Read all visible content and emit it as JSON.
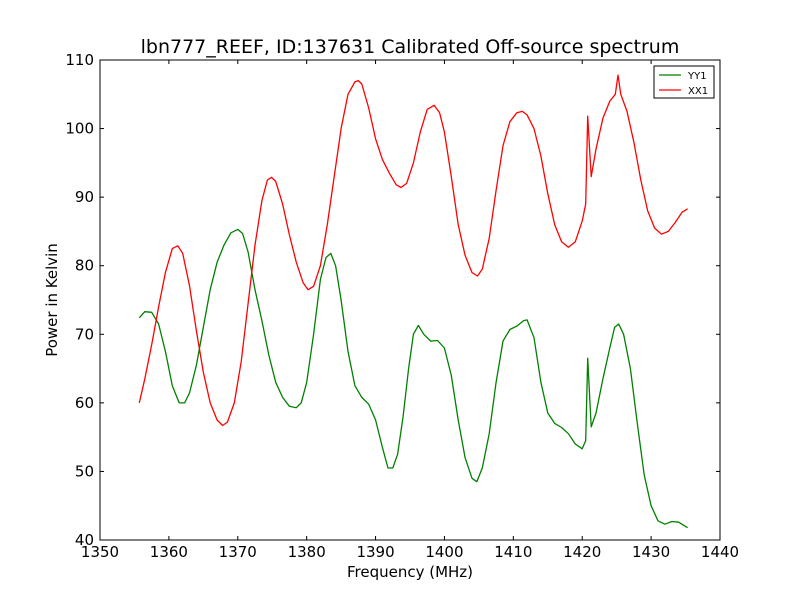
{
  "chart_data": {
    "type": "line",
    "title": "lbn777_REEF, ID:137631 Calibrated Off-source spectrum",
    "xlabel": "Frequency (MHz)",
    "ylabel": "Power in Kelvin",
    "xlim": [
      1350,
      1440
    ],
    "ylim": [
      40,
      110
    ],
    "xticks": [
      1350,
      1360,
      1370,
      1380,
      1390,
      1400,
      1410,
      1420,
      1430,
      1440
    ],
    "yticks": [
      40,
      50,
      60,
      70,
      80,
      90,
      100,
      110
    ],
    "grid": false,
    "legend_position": "top-right",
    "series": [
      {
        "name": "YY1",
        "color": "#008000",
        "points": [
          [
            1355.7,
            72.4
          ],
          [
            1356.5,
            73.3
          ],
          [
            1357.5,
            73.2
          ],
          [
            1358.5,
            71.5
          ],
          [
            1359.5,
            67.5
          ],
          [
            1360.5,
            62.5
          ],
          [
            1361.5,
            60.0
          ],
          [
            1362.3,
            60.0
          ],
          [
            1363.0,
            61.5
          ],
          [
            1364.0,
            65.5
          ],
          [
            1365.0,
            71.0
          ],
          [
            1366.0,
            76.5
          ],
          [
            1367.0,
            80.5
          ],
          [
            1368.0,
            83.0
          ],
          [
            1369.0,
            84.8
          ],
          [
            1370.0,
            85.3
          ],
          [
            1370.7,
            84.7
          ],
          [
            1371.5,
            82.0
          ],
          [
            1372.5,
            76.5
          ],
          [
            1373.5,
            72.0
          ],
          [
            1374.5,
            67.0
          ],
          [
            1375.5,
            63.0
          ],
          [
            1376.5,
            60.8
          ],
          [
            1377.5,
            59.5
          ],
          [
            1378.5,
            59.3
          ],
          [
            1379.2,
            60.0
          ],
          [
            1380.0,
            63.0
          ],
          [
            1381.0,
            70.0
          ],
          [
            1382.0,
            78.0
          ],
          [
            1382.8,
            81.2
          ],
          [
            1383.5,
            81.8
          ],
          [
            1384.2,
            80.0
          ],
          [
            1385.0,
            75.0
          ],
          [
            1386.0,
            67.5
          ],
          [
            1387.0,
            62.5
          ],
          [
            1388.0,
            60.8
          ],
          [
            1389.0,
            59.8
          ],
          [
            1390.0,
            57.5
          ],
          [
            1391.0,
            53.5
          ],
          [
            1391.8,
            50.5
          ],
          [
            1392.5,
            50.5
          ],
          [
            1393.2,
            52.5
          ],
          [
            1394.0,
            58.0
          ],
          [
            1394.8,
            65.0
          ],
          [
            1395.5,
            70.0
          ],
          [
            1396.2,
            71.3
          ],
          [
            1397.0,
            70.0
          ],
          [
            1398.0,
            69.0
          ],
          [
            1399.0,
            69.1
          ],
          [
            1400.0,
            68.0
          ],
          [
            1401.0,
            64.0
          ],
          [
            1402.0,
            57.5
          ],
          [
            1403.0,
            52.0
          ],
          [
            1404.0,
            49.0
          ],
          [
            1404.7,
            48.5
          ],
          [
            1405.5,
            50.5
          ],
          [
            1406.5,
            55.5
          ],
          [
            1407.5,
            63.0
          ],
          [
            1408.5,
            69.0
          ],
          [
            1409.5,
            70.7
          ],
          [
            1410.5,
            71.2
          ],
          [
            1411.5,
            72.0
          ],
          [
            1412.0,
            72.1
          ],
          [
            1413.0,
            69.5
          ],
          [
            1414.0,
            63.0
          ],
          [
            1415.0,
            58.5
          ],
          [
            1416.0,
            57.0
          ],
          [
            1417.0,
            56.4
          ],
          [
            1418.0,
            55.5
          ],
          [
            1419.0,
            54.0
          ],
          [
            1420.0,
            53.3
          ],
          [
            1420.5,
            54.5
          ],
          [
            1420.8,
            66.5
          ],
          [
            1421.3,
            56.5
          ],
          [
            1422.0,
            58.5
          ],
          [
            1423.0,
            63.5
          ],
          [
            1424.0,
            68.0
          ],
          [
            1424.7,
            71.0
          ],
          [
            1425.3,
            71.5
          ],
          [
            1426.0,
            70.0
          ],
          [
            1427.0,
            65.0
          ],
          [
            1428.0,
            57.0
          ],
          [
            1429.0,
            49.5
          ],
          [
            1430.0,
            45.0
          ],
          [
            1431.0,
            42.8
          ],
          [
            1432.0,
            42.3
          ],
          [
            1433.0,
            42.7
          ],
          [
            1434.0,
            42.6
          ],
          [
            1435.3,
            41.8
          ]
        ]
      },
      {
        "name": "XX1",
        "color": "#ff0000",
        "points": [
          [
            1355.7,
            60.0
          ],
          [
            1356.5,
            63.5
          ],
          [
            1357.5,
            68.5
          ],
          [
            1358.5,
            74.0
          ],
          [
            1359.5,
            79.0
          ],
          [
            1360.5,
            82.5
          ],
          [
            1361.3,
            82.9
          ],
          [
            1362.0,
            81.8
          ],
          [
            1363.0,
            77.0
          ],
          [
            1364.0,
            70.5
          ],
          [
            1365.0,
            64.5
          ],
          [
            1366.0,
            60.0
          ],
          [
            1367.0,
            57.5
          ],
          [
            1367.8,
            56.7
          ],
          [
            1368.5,
            57.2
          ],
          [
            1369.5,
            60.0
          ],
          [
            1370.5,
            66.0
          ],
          [
            1371.5,
            74.5
          ],
          [
            1372.5,
            83.0
          ],
          [
            1373.5,
            89.5
          ],
          [
            1374.3,
            92.5
          ],
          [
            1374.9,
            92.9
          ],
          [
            1375.5,
            92.3
          ],
          [
            1376.5,
            89.0
          ],
          [
            1377.5,
            84.5
          ],
          [
            1378.5,
            80.5
          ],
          [
            1379.5,
            77.5
          ],
          [
            1380.2,
            76.5
          ],
          [
            1381.0,
            77.0
          ],
          [
            1382.0,
            80.0
          ],
          [
            1383.0,
            86.0
          ],
          [
            1384.0,
            93.0
          ],
          [
            1385.0,
            100.0
          ],
          [
            1386.0,
            105.0
          ],
          [
            1387.0,
            106.8
          ],
          [
            1387.5,
            107.0
          ],
          [
            1388.0,
            106.5
          ],
          [
            1389.0,
            103.0
          ],
          [
            1390.0,
            98.5
          ],
          [
            1391.0,
            95.5
          ],
          [
            1392.0,
            93.5
          ],
          [
            1393.0,
            91.8
          ],
          [
            1393.7,
            91.4
          ],
          [
            1394.5,
            92.0
          ],
          [
            1395.5,
            95.0
          ],
          [
            1396.5,
            99.5
          ],
          [
            1397.5,
            102.8
          ],
          [
            1398.5,
            103.4
          ],
          [
            1399.3,
            102.3
          ],
          [
            1400.0,
            99.5
          ],
          [
            1401.0,
            93.0
          ],
          [
            1402.0,
            86.0
          ],
          [
            1403.0,
            81.5
          ],
          [
            1404.0,
            79.0
          ],
          [
            1404.8,
            78.5
          ],
          [
            1405.5,
            79.5
          ],
          [
            1406.5,
            84.0
          ],
          [
            1407.5,
            91.0
          ],
          [
            1408.5,
            97.5
          ],
          [
            1409.5,
            101.0
          ],
          [
            1410.5,
            102.3
          ],
          [
            1411.3,
            102.5
          ],
          [
            1412.0,
            102.0
          ],
          [
            1413.0,
            100.0
          ],
          [
            1414.0,
            96.0
          ],
          [
            1415.0,
            90.5
          ],
          [
            1416.0,
            86.0
          ],
          [
            1417.0,
            83.5
          ],
          [
            1418.0,
            82.7
          ],
          [
            1419.0,
            83.5
          ],
          [
            1420.0,
            86.5
          ],
          [
            1420.5,
            89.0
          ],
          [
            1420.8,
            101.8
          ],
          [
            1421.3,
            93.0
          ],
          [
            1422.0,
            97.0
          ],
          [
            1423.0,
            101.5
          ],
          [
            1424.0,
            104.0
          ],
          [
            1424.8,
            105.0
          ],
          [
            1425.2,
            107.8
          ],
          [
            1425.6,
            105.0
          ],
          [
            1426.5,
            102.5
          ],
          [
            1427.5,
            98.0
          ],
          [
            1428.5,
            92.5
          ],
          [
            1429.5,
            88.0
          ],
          [
            1430.5,
            85.5
          ],
          [
            1431.5,
            84.6
          ],
          [
            1432.5,
            85.0
          ],
          [
            1433.5,
            86.3
          ],
          [
            1434.5,
            87.8
          ],
          [
            1435.3,
            88.3
          ]
        ]
      }
    ]
  }
}
